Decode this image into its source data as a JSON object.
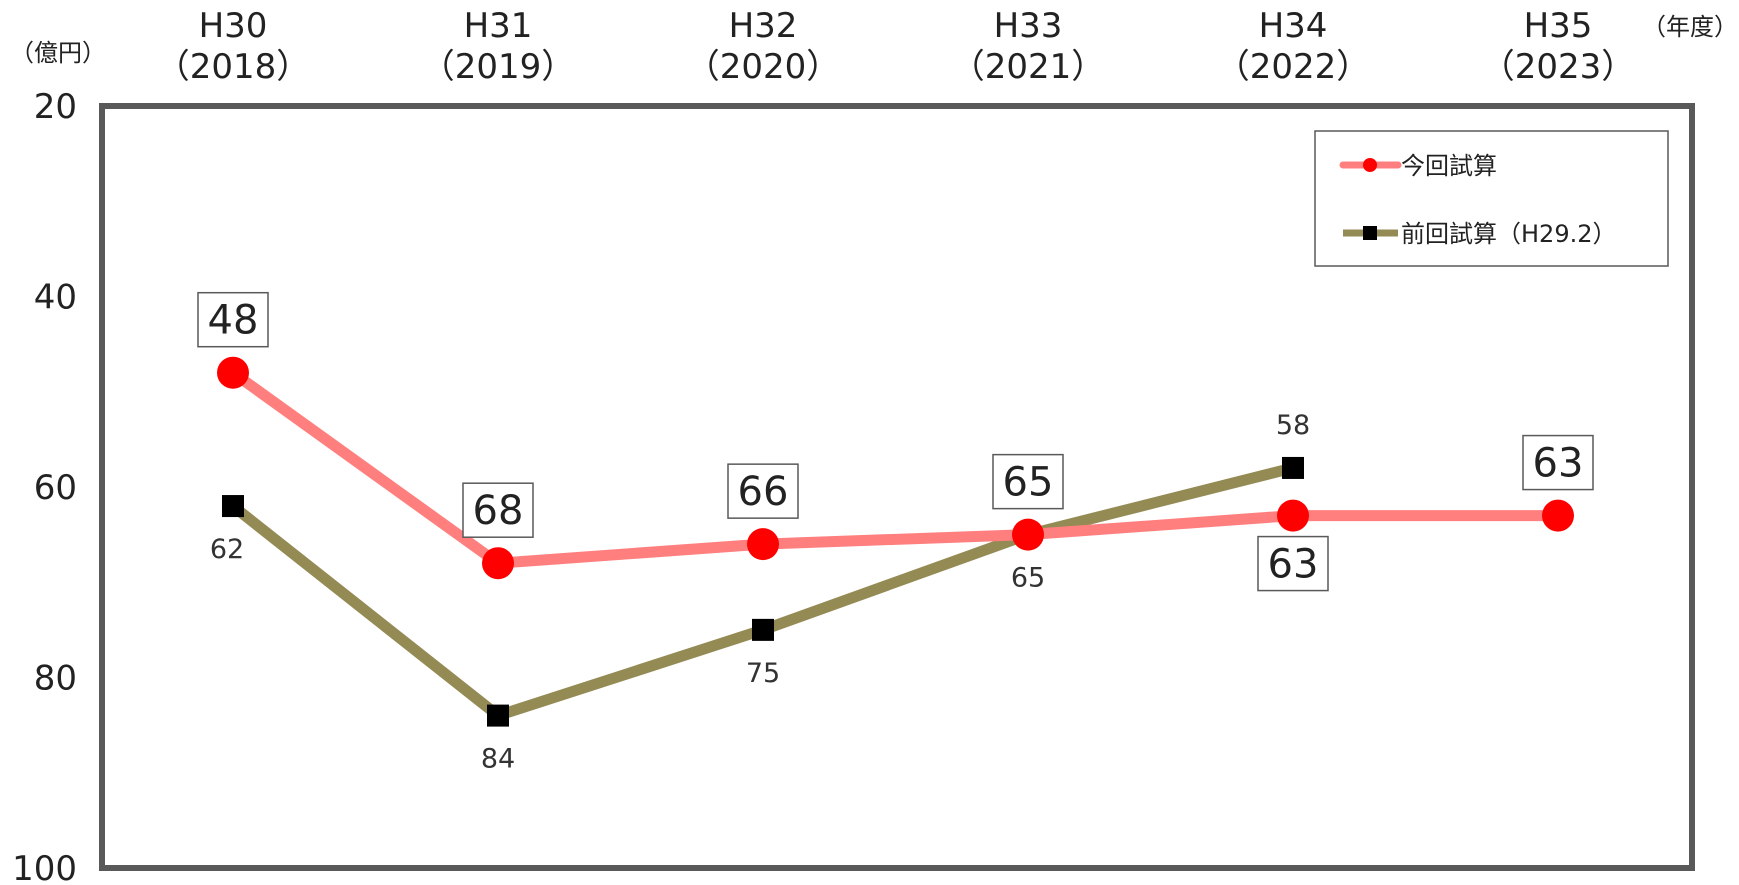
{
  "chart_data": {
    "type": "line",
    "categories": [
      {
        "era": "H30",
        "year": "（2018）"
      },
      {
        "era": "H31",
        "year": "（2019）"
      },
      {
        "era": "H32",
        "year": "（2020）"
      },
      {
        "era": "H33",
        "year": "（2021）"
      },
      {
        "era": "H34",
        "year": "（2022）"
      },
      {
        "era": "H35",
        "year": "（2023）"
      }
    ],
    "xlabel": "（年度）",
    "ylabel": "（億円）",
    "ylim": [
      100,
      20
    ],
    "y_reversed": true,
    "yticks": [
      20,
      40,
      60,
      80,
      100
    ],
    "grid": false,
    "legend_position": "top-right",
    "series": [
      {
        "name": "今回試算",
        "color": "#ff7f7f",
        "marker": "circle",
        "marker_color": "#ff0000",
        "values": [
          48,
          68,
          66,
          65,
          63,
          63
        ],
        "labels": [
          "48",
          "68",
          "66",
          "65",
          "63",
          "63"
        ],
        "label_style": "boxed"
      },
      {
        "name": "前回試算（H29.2）",
        "color": "#948a54",
        "marker": "square",
        "marker_color": "#000000",
        "values": [
          62,
          84,
          75,
          65,
          58,
          null
        ],
        "labels": [
          "62",
          "84",
          "75",
          "65",
          "58",
          ""
        ],
        "label_style": "plain"
      }
    ]
  }
}
